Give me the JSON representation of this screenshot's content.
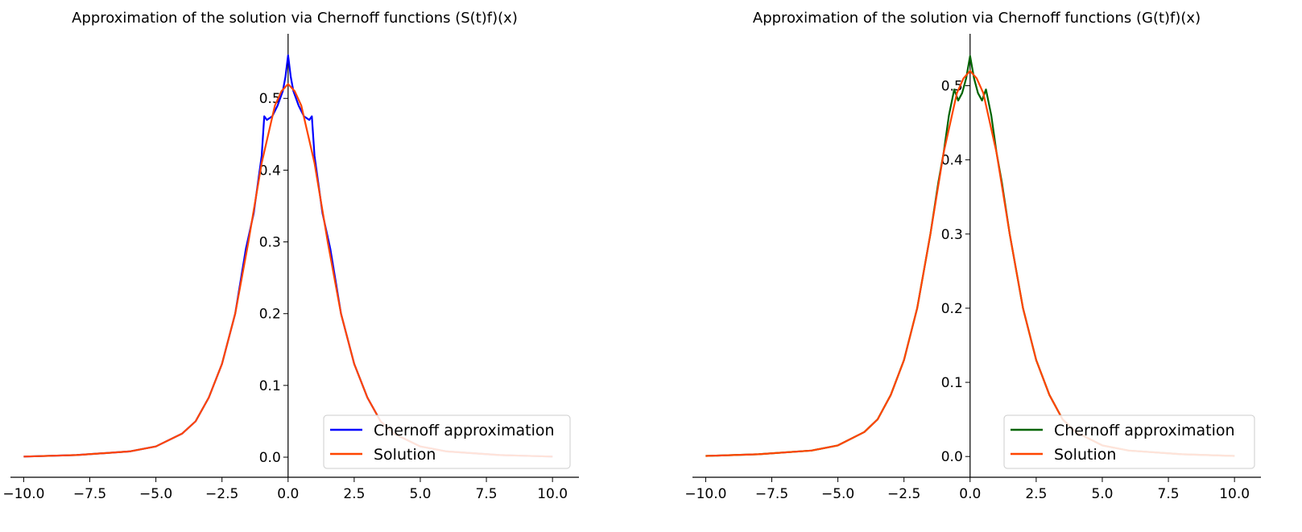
{
  "chart_data": [
    {
      "type": "line",
      "title": "Approximation of the solution via Chernoff functions (S(t)f)(x)",
      "xlabel": "",
      "ylabel": "",
      "xlim": [
        -10.5,
        11
      ],
      "ylim": [
        -0.028,
        0.59
      ],
      "xticks": [
        -10.0,
        -7.5,
        -5.0,
        -2.5,
        0.0,
        2.5,
        5.0,
        7.5,
        10.0
      ],
      "xtick_labels": [
        "−10.0",
        "−7.5",
        "−5.0",
        "−2.5",
        "0.0",
        "2.5",
        "5.0",
        "7.5",
        "10.0"
      ],
      "yticks": [
        0.0,
        0.1,
        0.2,
        0.3,
        0.4,
        0.5
      ],
      "ytick_labels": [
        "0.0",
        "0.1",
        "0.2",
        "0.3",
        "0.4",
        "0.5"
      ],
      "spines": "centered-y-axis",
      "grid": false,
      "legend": {
        "placement": "lower-right",
        "entries": [
          "Chernoff approximation",
          "Solution"
        ]
      },
      "series": [
        {
          "name": "Chernoff approximation",
          "color": "#0000ff",
          "x": [
            -10,
            -8,
            -6,
            -5,
            -4,
            -3.5,
            -3,
            -2.5,
            -2,
            -1.6,
            -1.3,
            -1.0,
            -0.9,
            -0.8,
            -0.6,
            -0.4,
            -0.2,
            -0.1,
            0,
            0.1,
            0.2,
            0.4,
            0.6,
            0.8,
            0.9,
            1.0,
            1.3,
            1.6,
            2,
            2.5,
            3,
            3.5,
            4,
            5,
            6,
            8,
            10
          ],
          "y": [
            0.0008,
            0.003,
            0.008,
            0.015,
            0.033,
            0.05,
            0.083,
            0.13,
            0.2,
            0.29,
            0.34,
            0.42,
            0.475,
            0.47,
            0.475,
            0.49,
            0.51,
            0.53,
            0.56,
            0.53,
            0.51,
            0.49,
            0.475,
            0.47,
            0.475,
            0.42,
            0.34,
            0.29,
            0.2,
            0.13,
            0.083,
            0.05,
            0.033,
            0.015,
            0.008,
            0.003,
            0.0008
          ]
        },
        {
          "name": "Solution",
          "color": "#ff4500",
          "x": [
            -10,
            -8,
            -6,
            -5,
            -4,
            -3.5,
            -3,
            -2.5,
            -2,
            -1.5,
            -1.0,
            -0.5,
            -0.25,
            0,
            0.25,
            0.5,
            1.0,
            1.5,
            2,
            2.5,
            3,
            3.5,
            4,
            5,
            6,
            8,
            10
          ],
          "y": [
            0.0008,
            0.003,
            0.008,
            0.015,
            0.033,
            0.05,
            0.083,
            0.13,
            0.2,
            0.3,
            0.41,
            0.49,
            0.51,
            0.52,
            0.51,
            0.49,
            0.41,
            0.3,
            0.2,
            0.13,
            0.083,
            0.05,
            0.033,
            0.015,
            0.008,
            0.003,
            0.0008
          ]
        }
      ]
    },
    {
      "type": "line",
      "title": "Approximation of the solution via Chernoff functions (G(t)f)(x)",
      "xlabel": "",
      "ylabel": "",
      "xlim": [
        -10.5,
        11
      ],
      "ylim": [
        -0.028,
        0.57
      ],
      "xticks": [
        -10.0,
        -7.5,
        -5.0,
        -2.5,
        0.0,
        2.5,
        5.0,
        7.5,
        10.0
      ],
      "xtick_labels": [
        "−10.0",
        "−7.5",
        "−5.0",
        "−2.5",
        "0.0",
        "2.5",
        "5.0",
        "7.5",
        "10.0"
      ],
      "yticks": [
        0.0,
        0.1,
        0.2,
        0.3,
        0.4,
        0.5
      ],
      "ytick_labels": [
        "0.0",
        "0.1",
        "0.2",
        "0.3",
        "0.4",
        "0.5"
      ],
      "spines": "centered-y-axis",
      "grid": false,
      "legend": {
        "placement": "lower-right",
        "entries": [
          "Chernoff approximation",
          "Solution"
        ]
      },
      "series": [
        {
          "name": "Chernoff approximation",
          "color": "#006400",
          "x": [
            -10,
            -8,
            -6,
            -5,
            -4,
            -3.5,
            -3,
            -2.5,
            -2,
            -1.5,
            -1.2,
            -1.0,
            -0.8,
            -0.6,
            -0.45,
            -0.3,
            -0.15,
            0,
            0.15,
            0.3,
            0.45,
            0.6,
            0.8,
            1.0,
            1.2,
            1.5,
            2,
            2.5,
            3,
            3.5,
            4,
            5,
            6,
            8,
            10
          ],
          "y": [
            0.0008,
            0.003,
            0.008,
            0.015,
            0.033,
            0.05,
            0.083,
            0.13,
            0.2,
            0.3,
            0.37,
            0.41,
            0.46,
            0.495,
            0.48,
            0.49,
            0.51,
            0.54,
            0.51,
            0.49,
            0.48,
            0.495,
            0.46,
            0.41,
            0.37,
            0.3,
            0.2,
            0.13,
            0.083,
            0.05,
            0.033,
            0.015,
            0.008,
            0.003,
            0.0008
          ]
        },
        {
          "name": "Solution",
          "color": "#ff4500",
          "x": [
            -10,
            -8,
            -6,
            -5,
            -4,
            -3.5,
            -3,
            -2.5,
            -2,
            -1.5,
            -1.0,
            -0.5,
            -0.25,
            0,
            0.25,
            0.5,
            1.0,
            1.5,
            2,
            2.5,
            3,
            3.5,
            4,
            5,
            6,
            8,
            10
          ],
          "y": [
            0.0008,
            0.003,
            0.008,
            0.015,
            0.033,
            0.05,
            0.083,
            0.13,
            0.2,
            0.3,
            0.41,
            0.49,
            0.51,
            0.52,
            0.51,
            0.49,
            0.41,
            0.3,
            0.2,
            0.13,
            0.083,
            0.05,
            0.033,
            0.015,
            0.008,
            0.003,
            0.0008
          ]
        }
      ]
    }
  ]
}
